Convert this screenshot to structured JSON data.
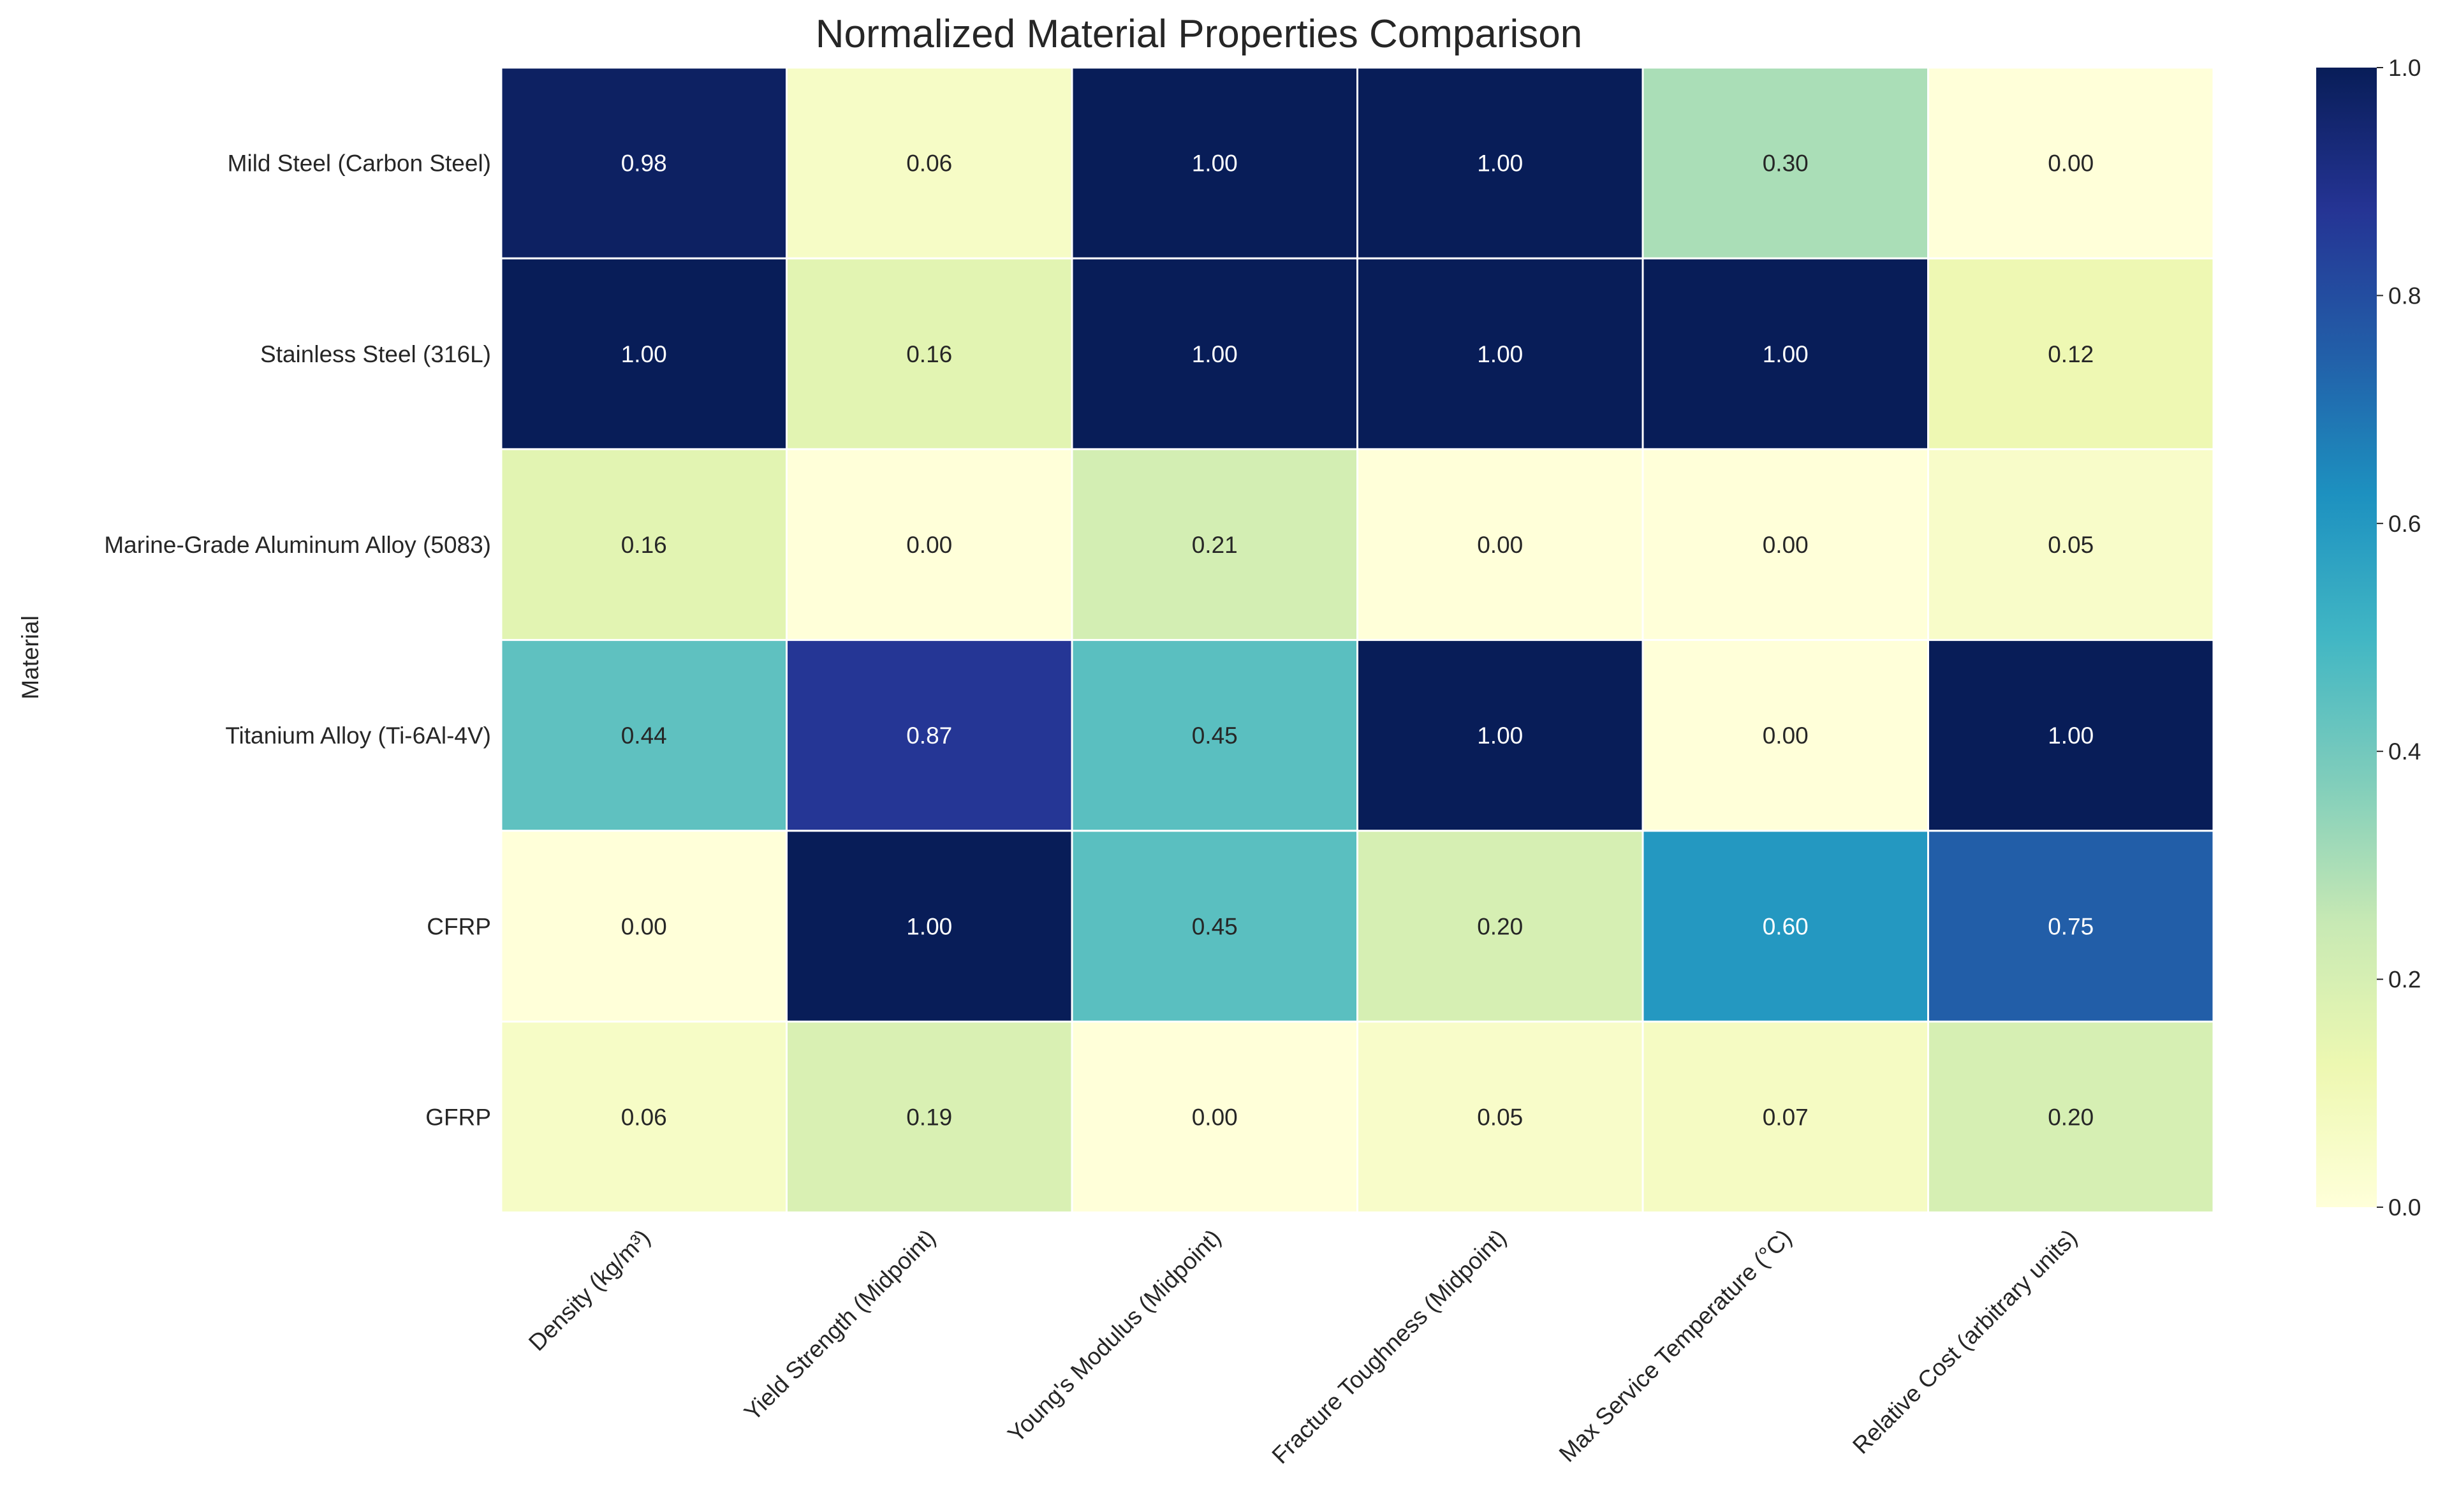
{
  "chart_data": {
    "type": "heatmap",
    "title": "Normalized Material Properties Comparison",
    "xlabel": "",
    "ylabel": "Material",
    "rows": [
      "Mild Steel (Carbon Steel)",
      "Stainless Steel (316L)",
      "Marine-Grade Aluminum Alloy (5083)",
      "Titanium Alloy (Ti-6Al-4V)",
      "CFRP",
      "GFRP"
    ],
    "columns": [
      "Density (kg/m³)",
      "Yield Strength (Midpoint)",
      "Young's Modulus (Midpoint)",
      "Fracture Toughness (Midpoint)",
      "Max Service Temperature (°C)",
      "Relative Cost (arbitrary units)"
    ],
    "values": [
      [
        0.98,
        0.06,
        1.0,
        1.0,
        0.3,
        0.0
      ],
      [
        1.0,
        0.16,
        1.0,
        1.0,
        1.0,
        0.12
      ],
      [
        0.16,
        0.0,
        0.21,
        0.0,
        0.0,
        0.05
      ],
      [
        0.44,
        0.87,
        0.45,
        1.0,
        0.0,
        1.0
      ],
      [
        0.0,
        1.0,
        0.45,
        0.2,
        0.6,
        0.75
      ],
      [
        0.06,
        0.19,
        0.0,
        0.05,
        0.07,
        0.2
      ]
    ],
    "value_format": "0.00",
    "colormap": "YlGnBu",
    "colorbar": {
      "min": 0.0,
      "max": 1.0,
      "ticks": [
        0.0,
        0.2,
        0.4,
        0.6,
        0.8,
        1.0
      ],
      "tick_labels": [
        "0.0",
        "0.2",
        "0.4",
        "0.6",
        "0.8",
        "1.0"
      ]
    },
    "grid": false,
    "colors": {
      "cell_border": "#ffffff",
      "text_dark": "#262626",
      "text_light": "#ffffff",
      "title": "#262626"
    }
  }
}
